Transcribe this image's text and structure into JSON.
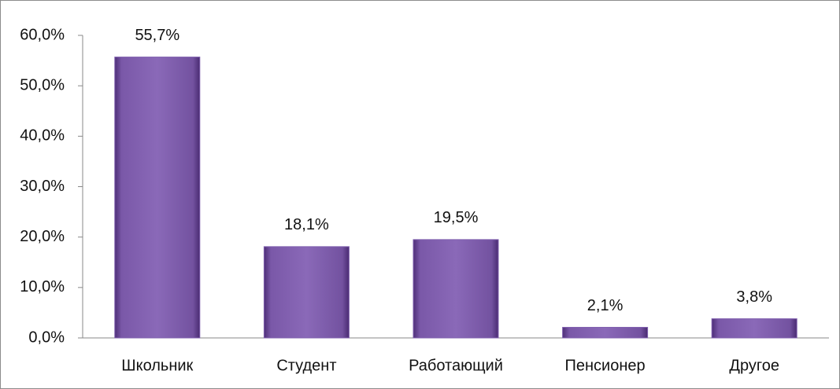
{
  "chart_data": {
    "type": "bar",
    "categories": [
      "Школьник",
      "Студент",
      "Работающий",
      "Пенсионер",
      "Другое"
    ],
    "values": [
      55.7,
      18.1,
      19.5,
      2.1,
      3.8
    ],
    "value_labels": [
      "55,7%",
      "18,1%",
      "19,5%",
      "2,1%",
      "3,8%"
    ],
    "color": "#7f5fae",
    "ylim": [
      0,
      60
    ],
    "yticks": [
      {
        "value": 0,
        "label": "0,0%"
      },
      {
        "value": 10,
        "label": "10,0%"
      },
      {
        "value": 20,
        "label": "20,0%"
      },
      {
        "value": 30,
        "label": "30,0%"
      },
      {
        "value": 40,
        "label": "40,0%"
      },
      {
        "value": 50,
        "label": "50,0%"
      },
      {
        "value": 60,
        "label": "60,0%"
      }
    ],
    "grid": false
  }
}
